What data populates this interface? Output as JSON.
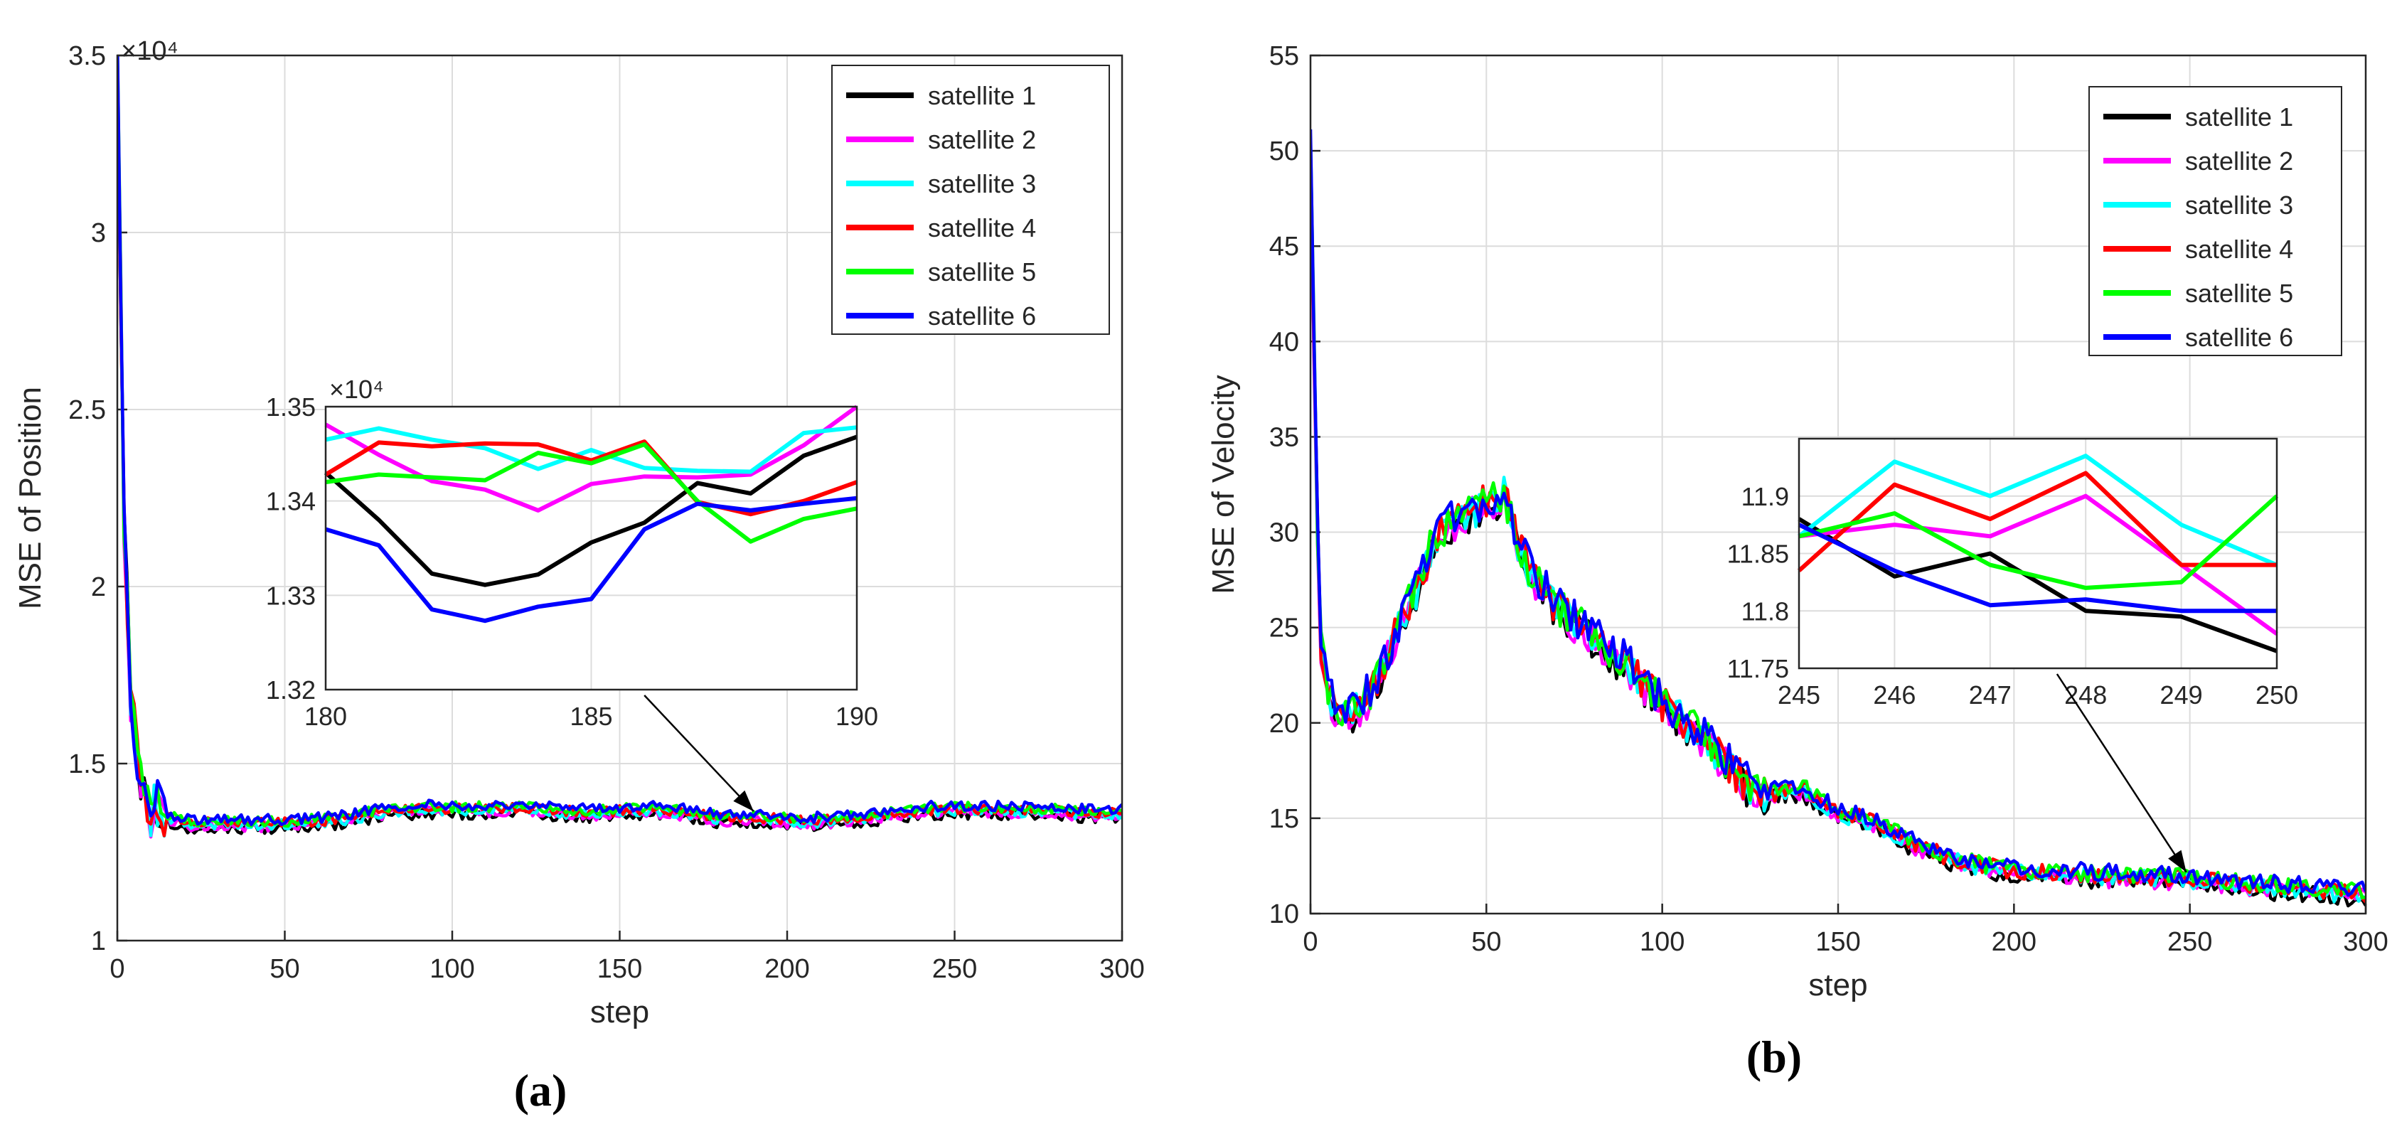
{
  "colors": {
    "satellite 1": "#000000",
    "satellite 2": "#ff00ff",
    "satellite 3": "#00ffff",
    "satellite 4": "#ff0000",
    "satellite 5": "#00ff00",
    "satellite 6": "#0000ff"
  },
  "chart_data": [
    {
      "type": "line",
      "panel_label": "(a)",
      "xlabel": "step",
      "ylabel": "MSE of Position",
      "xlim": [
        0,
        300
      ],
      "ylim": [
        10000,
        35000
      ],
      "x_ticks": [
        "0",
        "50",
        "100",
        "150",
        "200",
        "250",
        "300"
      ],
      "y_ticks": [
        "1",
        "1.5",
        "2",
        "2.5",
        "3",
        "3.5"
      ],
      "y_exponent": "×10⁴",
      "grid": true,
      "legend": [
        "satellite 1",
        "satellite 2",
        "satellite 3",
        "satellite 4",
        "satellite 5",
        "satellite 6"
      ],
      "legend_location": "top-right",
      "overview_points": [
        [
          0,
          35000
        ],
        [
          2,
          22000
        ],
        [
          4,
          17000
        ],
        [
          6,
          15000
        ],
        [
          8,
          14200
        ],
        [
          10,
          13700
        ],
        [
          12,
          13900
        ],
        [
          15,
          13500
        ],
        [
          20,
          13300
        ],
        [
          25,
          13300
        ],
        [
          30,
          13300
        ],
        [
          40,
          13300
        ],
        [
          50,
          13300
        ],
        [
          60,
          13350
        ],
        [
          70,
          13450
        ],
        [
          80,
          13650
        ],
        [
          90,
          13700
        ],
        [
          100,
          13700
        ],
        [
          110,
          13700
        ],
        [
          120,
          13750
        ],
        [
          130,
          13650
        ],
        [
          140,
          13600
        ],
        [
          150,
          13650
        ],
        [
          160,
          13700
        ],
        [
          170,
          13600
        ],
        [
          180,
          13450
        ],
        [
          190,
          13450
        ],
        [
          200,
          13400
        ],
        [
          210,
          13350
        ],
        [
          220,
          13450
        ],
        [
          230,
          13550
        ],
        [
          240,
          13650
        ],
        [
          250,
          13700
        ],
        [
          260,
          13700
        ],
        [
          270,
          13650
        ],
        [
          280,
          13650
        ],
        [
          290,
          13600
        ],
        [
          300,
          13600
        ]
      ],
      "inset": {
        "xlim": [
          180,
          190
        ],
        "ylim": [
          13200,
          13500
        ],
        "x": [
          180,
          181,
          182,
          183,
          184,
          185,
          186,
          187,
          188,
          189,
          190
        ],
        "x_ticks": [
          "180",
          "185",
          "190"
        ],
        "y_ticks": [
          "1.32",
          "1.33",
          "1.34",
          "1.35"
        ],
        "y_exponent": "×10⁴",
        "arrow_target": [
          190,
          13450
        ],
        "series": [
          {
            "name": "satellite 1",
            "values": [
              13430,
              13380,
              13323,
              13311,
              13322,
              13356,
              13377,
              13419,
              13408,
              13448,
              13468
            ]
          },
          {
            "name": "satellite 2",
            "values": [
              13481,
              13449,
              13421,
              13412,
              13390,
              13418,
              13426,
              13425,
              13428,
              13459,
              13500
            ]
          },
          {
            "name": "satellite 3",
            "values": [
              13465,
              13477,
              13465,
              13456,
              13434,
              13454,
              13435,
              13432,
              13431,
              13472,
              13478
            ]
          },
          {
            "name": "satellite 4",
            "values": [
              13428,
              13462,
              13458,
              13461,
              13460,
              13443,
              13463,
              13399,
              13386,
              13400,
              13420
            ]
          },
          {
            "name": "satellite 5",
            "values": [
              13420,
              13428,
              13425,
              13422,
              13451,
              13440,
              13460,
              13400,
              13357,
              13381,
              13392
            ]
          },
          {
            "name": "satellite 6",
            "values": [
              13370,
              13353,
              13285,
              13273,
              13288,
              13296,
              13370,
              13397,
              13390,
              13397,
              13403
            ]
          }
        ]
      }
    },
    {
      "type": "line",
      "panel_label": "(b)",
      "xlabel": "step",
      "ylabel": "MSE of Velocity",
      "xlim": [
        0,
        300
      ],
      "ylim": [
        10,
        55
      ],
      "x_ticks": [
        "0",
        "50",
        "100",
        "150",
        "200",
        "250",
        "300"
      ],
      "y_ticks": [
        "10",
        "15",
        "20",
        "25",
        "30",
        "35",
        "40",
        "45",
        "50",
        "55"
      ],
      "grid": true,
      "legend": [
        "satellite 1",
        "satellite 2",
        "satellite 3",
        "satellite 4",
        "satellite 5",
        "satellite 6"
      ],
      "legend_location": "top-right",
      "overview_points": [
        [
          0,
          50
        ],
        [
          1,
          40
        ],
        [
          2,
          30
        ],
        [
          3,
          24
        ],
        [
          5,
          21.5
        ],
        [
          8,
          20.5
        ],
        [
          12,
          20.5
        ],
        [
          15,
          21
        ],
        [
          20,
          22.5
        ],
        [
          25,
          25
        ],
        [
          30,
          27
        ],
        [
          35,
          29.5
        ],
        [
          40,
          30.5
        ],
        [
          45,
          31
        ],
        [
          50,
          31.5
        ],
        [
          55,
          32
        ],
        [
          58,
          30
        ],
        [
          62,
          28
        ],
        [
          70,
          26
        ],
        [
          80,
          24.5
        ],
        [
          90,
          23
        ],
        [
          100,
          21
        ],
        [
          110,
          19.5
        ],
        [
          120,
          17.5
        ],
        [
          128,
          16
        ],
        [
          135,
          16.5
        ],
        [
          140,
          16.5
        ],
        [
          145,
          15.8
        ],
        [
          150,
          15.3
        ],
        [
          160,
          14.8
        ],
        [
          170,
          13.8
        ],
        [
          180,
          13
        ],
        [
          190,
          12.5
        ],
        [
          200,
          12.2
        ],
        [
          210,
          12.1
        ],
        [
          220,
          12
        ],
        [
          230,
          11.9
        ],
        [
          240,
          11.85
        ],
        [
          250,
          11.8
        ],
        [
          260,
          11.6
        ],
        [
          270,
          11.4
        ],
        [
          280,
          11.3
        ],
        [
          290,
          11.1
        ],
        [
          300,
          11
        ]
      ],
      "inset": {
        "xlim": [
          245,
          250
        ],
        "ylim": [
          11.75,
          11.95
        ],
        "x": [
          245,
          246,
          247,
          248,
          249,
          250
        ],
        "x_ticks": [
          "245",
          "246",
          "247",
          "248",
          "249",
          "250"
        ],
        "y_ticks": [
          "11.75",
          "11.8",
          "11.85",
          "11.9"
        ],
        "arrow_target": [
          249,
          11.8
        ],
        "series": [
          {
            "name": "satellite 1",
            "values": [
              11.88,
              11.83,
              11.85,
              11.8,
              11.795,
              11.765
            ]
          },
          {
            "name": "satellite 2",
            "values": [
              11.865,
              11.875,
              11.865,
              11.9,
              11.84,
              11.78
            ]
          },
          {
            "name": "satellite 3",
            "values": [
              11.865,
              11.93,
              11.9,
              11.935,
              11.875,
              11.84
            ]
          },
          {
            "name": "satellite 4",
            "values": [
              11.835,
              11.91,
              11.88,
              11.92,
              11.84,
              11.84
            ]
          },
          {
            "name": "satellite 5",
            "values": [
              11.865,
              11.885,
              11.84,
              11.82,
              11.825,
              11.9
            ]
          },
          {
            "name": "satellite 6",
            "values": [
              11.875,
              11.835,
              11.805,
              11.81,
              11.8,
              11.8
            ]
          }
        ]
      }
    }
  ]
}
